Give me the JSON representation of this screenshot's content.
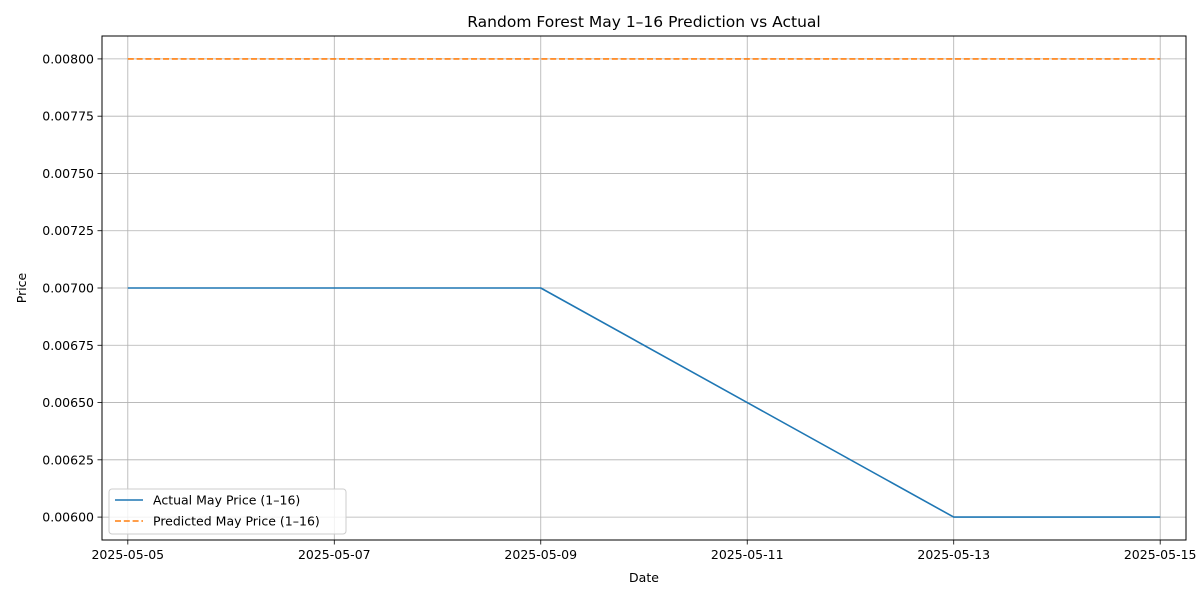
{
  "chart_data": {
    "type": "line",
    "title": "Random Forest May 1–16 Prediction vs Actual",
    "xlabel": "Date",
    "ylabel": "Price",
    "x": [
      "2025-05-05",
      "2025-05-09",
      "2025-05-11",
      "2025-05-13",
      "2025-05-15"
    ],
    "series": [
      {
        "name": "Actual May Price (1–16)",
        "color": "#1f77b4",
        "style": "solid",
        "x": [
          "2025-05-05",
          "2025-05-09",
          "2025-05-11",
          "2025-05-13",
          "2025-05-15"
        ],
        "values": [
          0.007,
          0.007,
          0.0065,
          0.006,
          0.006
        ]
      },
      {
        "name": "Predicted May Price (1–16)",
        "color": "#ff7f0e",
        "style": "dashed",
        "x": [
          "2025-05-05",
          "2025-05-15"
        ],
        "values": [
          0.008,
          0.008
        ]
      }
    ],
    "xlim": [
      "2025-05-04",
      "2025-05-15"
    ],
    "ylim": [
      0.0059,
      0.0081
    ],
    "x_ticks": [
      "2025-05-05",
      "2025-05-07",
      "2025-05-09",
      "2025-05-11",
      "2025-05-13",
      "2025-05-15"
    ],
    "y_ticks": [
      0.006,
      0.00625,
      0.0065,
      0.00675,
      0.007,
      0.00725,
      0.0075,
      0.00775,
      0.008
    ],
    "y_tick_labels": [
      "0.00600",
      "0.00625",
      "0.00650",
      "0.00675",
      "0.00700",
      "0.00725",
      "0.00750",
      "0.00775",
      "0.00800"
    ],
    "grid": true,
    "legend_position": "lower-left"
  }
}
